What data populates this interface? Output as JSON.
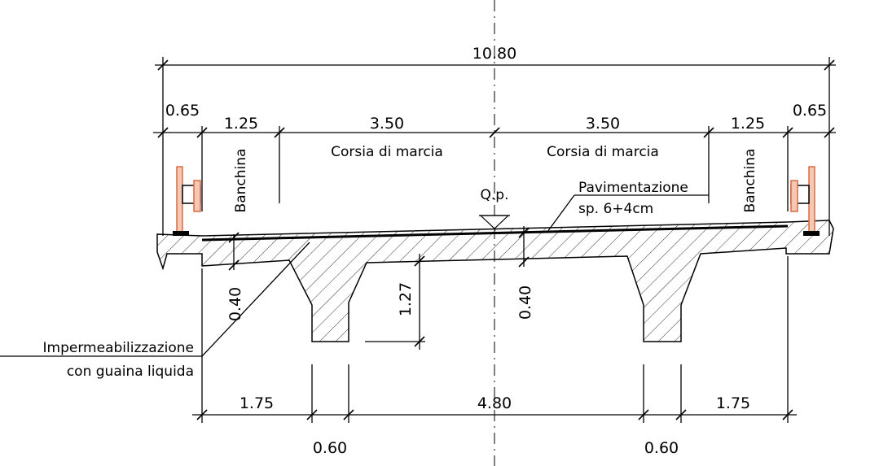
{
  "dimensions": {
    "overall": "10.80",
    "lanes": [
      "0.65",
      "1.25",
      "3.50",
      "3.50",
      "1.25",
      "0.65"
    ],
    "slab_left": "0.40",
    "girder": "1.27",
    "slab_center": "0.40",
    "bottom": [
      "1.75",
      "4.80",
      "1.75"
    ],
    "girder_width": [
      "0.60",
      "0.60"
    ]
  },
  "labels": {
    "lane_left": "Corsia di marcia",
    "lane_right": "Corsia di marcia",
    "shoulder_left": "Banchina",
    "shoulder_right": "Banchina",
    "elevation": "Q.p.",
    "paving": "Pavimentazione",
    "paving_thickness": "sp. 6+4cm",
    "waterproofing": [
      "Impermeabilizzazione",
      "con guaina liquida"
    ]
  }
}
